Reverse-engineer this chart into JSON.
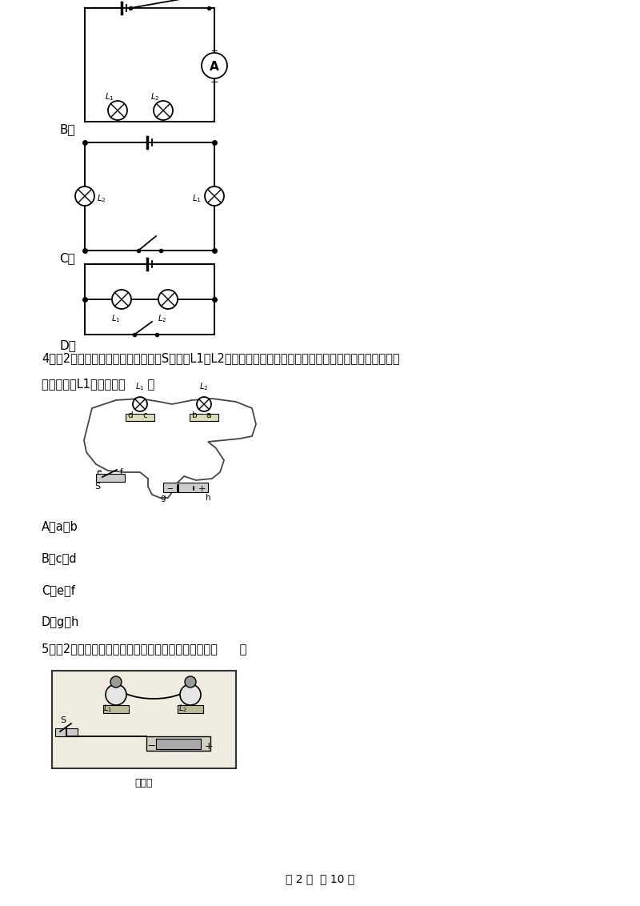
{
  "bg_color": "#ffffff",
  "q4_line1": "4．（2分）如图所示电路，闭合开关S，灯泡L1、L2都发光．现将一根导线接在该电路中的某两个接线柱上，",
  "q4_line2": "只导致灯泡L1熄灭的是（      ）",
  "q4_A": "A．a和b",
  "q4_B": "B．c和d",
  "q4_C": "C．e和f",
  "q4_D": "D．g和h",
  "q5_text": "5．（2分）如图所示，下列电路图与实物图一致的是（      ）",
  "label_B": "B．",
  "label_C": "C．",
  "label_D": "D．",
  "footer": "第 2 页  共 10 页",
  "shiwutu": "实物图"
}
